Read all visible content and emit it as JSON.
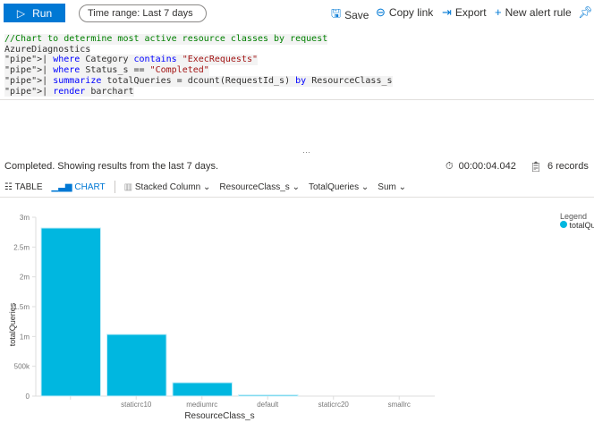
{
  "toolbar": {
    "run_label": "Run",
    "time_range": "Time range: Last 7 days",
    "save_label": "Save",
    "copy_link_label": "Copy link",
    "export_label": "Export",
    "new_alert_label": "New alert rule"
  },
  "editor": {
    "lines": [
      "//Chart to determine most active resource classes by request",
      "AzureDiagnostics",
      "| where Category contains \"ExecRequests\"",
      "| where Status_s == \"Completed\"",
      "| summarize totalQueries = dcount(RequestId_s) by ResourceClass_s",
      "| render barchart"
    ]
  },
  "results": {
    "status": "Completed. Showing results from the last 7 days.",
    "duration": "00:00:04.042",
    "records": "6 records",
    "table_tab": "TABLE",
    "chart_tab": "CHART",
    "chart_type": "Stacked Column",
    "x_column": "ResourceClass_s",
    "y_column": "TotalQueries",
    "aggregation": "Sum"
  },
  "chart_data": {
    "type": "bar",
    "categories": [
      "",
      "staticrc10",
      "mediumrc",
      "default",
      "staticrc20",
      "smallrc"
    ],
    "series": [
      {
        "name": "totalQueries",
        "values": [
          2820000,
          1035000,
          225000,
          20000,
          0,
          0
        ],
        "color": "#00b7e0"
      }
    ],
    "xlabel": "ResourceClass_s",
    "ylabel": "totalQueries",
    "ylim": [
      0,
      3000000
    ],
    "yticks": [
      0,
      500000,
      1000000,
      1500000,
      2000000,
      2500000,
      3000000
    ],
    "ytick_labels": [
      "0",
      "500k",
      "1m",
      "1.5m",
      "2m",
      "2.5m",
      "3m"
    ],
    "legend_title": "Legend",
    "legend_placement": "top-right",
    "grid": false
  }
}
